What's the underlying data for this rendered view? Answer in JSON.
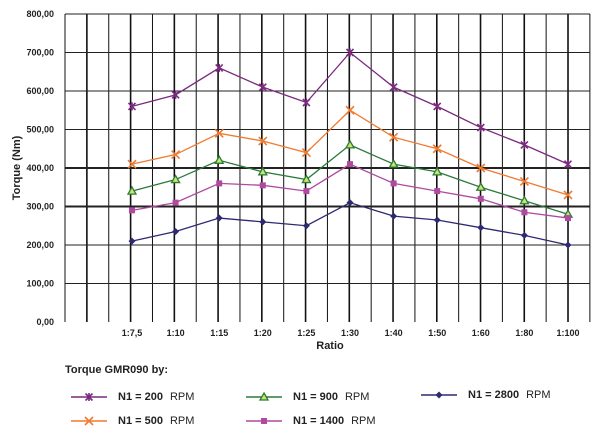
{
  "chart_data": {
    "type": "line",
    "title": "",
    "xlabel": "Ratio",
    "ylabel": "Torque (Nm)",
    "ylim": [
      0,
      800
    ],
    "yticks": [
      "0,00",
      "100,00",
      "200,00",
      "300,00",
      "400,00",
      "500,00",
      "600,00",
      "700,00",
      "800,00"
    ],
    "categories": [
      "1:7,5",
      "1:10",
      "1:15",
      "1:20",
      "1:25",
      "1:30",
      "1:40",
      "1:50",
      "1:60",
      "1:80",
      "1:100"
    ],
    "grid": true,
    "legend_title": "Torque GMR090 by:",
    "legend_placement": "bottom",
    "series": [
      {
        "name": "N1 = 200",
        "unit": "RPM",
        "color": "#7b2a7f",
        "marker": "star",
        "values": [
          560,
          590,
          660,
          610,
          570,
          700,
          610,
          560,
          505,
          460,
          410
        ]
      },
      {
        "name": "N1 = 500",
        "unit": "RPM",
        "color": "#f07a30",
        "marker": "x",
        "values": [
          410,
          435,
          490,
          470,
          440,
          550,
          480,
          450,
          400,
          365,
          330
        ]
      },
      {
        "name": "N1 = 900",
        "unit": "RPM",
        "color": "#2a7a3a",
        "marker": "triangle",
        "values": [
          340,
          370,
          420,
          390,
          370,
          460,
          410,
          390,
          350,
          315,
          280
        ]
      },
      {
        "name": "N1 = 1400",
        "unit": "RPM",
        "color": "#b04aa0",
        "marker": "square",
        "values": [
          290,
          310,
          360,
          355,
          340,
          410,
          360,
          340,
          320,
          285,
          270
        ]
      },
      {
        "name": "N1 = 2800",
        "unit": "RPM",
        "color": "#2e2a70",
        "marker": "diamond",
        "values": [
          210,
          235,
          270,
          260,
          250,
          310,
          275,
          265,
          245,
          225,
          200
        ]
      }
    ]
  }
}
